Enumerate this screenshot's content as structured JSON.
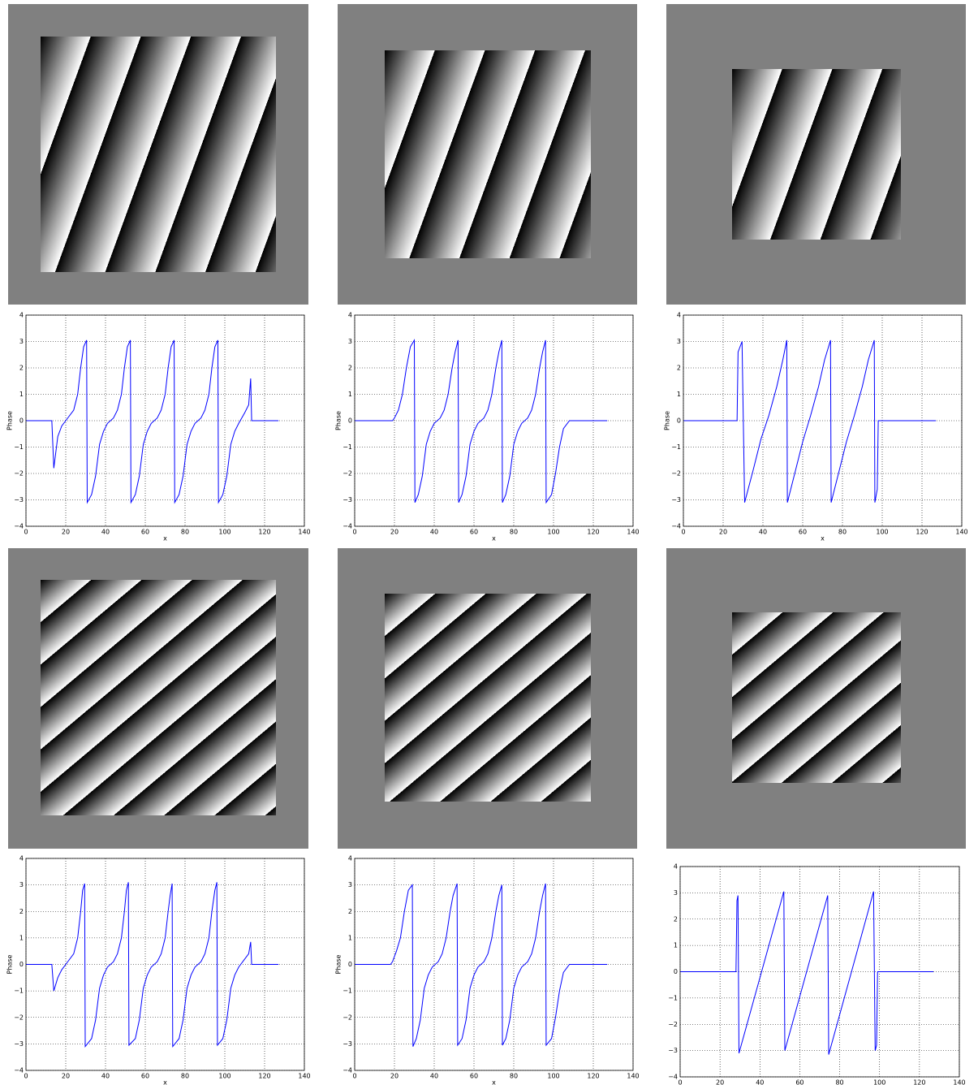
{
  "chart_data": [
    {
      "type": "line",
      "ylabel": "Phase",
      "xlabel": "x",
      "color": "#0000ff",
      "grid": true,
      "xlim": [
        0,
        140
      ],
      "ylim": [
        -4,
        4
      ],
      "xticks": [
        0,
        20,
        40,
        60,
        80,
        100,
        120,
        140
      ],
      "yticks": [
        {
          "value": -4,
          "label": "−4"
        },
        {
          "value": -3,
          "label": "−3"
        },
        {
          "value": -2,
          "label": "−2"
        },
        {
          "value": -1,
          "label": "−1"
        },
        0,
        1,
        2,
        3,
        4
      ],
      "x": [
        0,
        13,
        14,
        16,
        18,
        21,
        24,
        26,
        27.5,
        29,
        30.5,
        30.8,
        33,
        35,
        37,
        39,
        41,
        44,
        46,
        48,
        49.5,
        51,
        52.5,
        52.8,
        55,
        57,
        59,
        61,
        63,
        66,
        68,
        70,
        71.5,
        73,
        74.5,
        74.8,
        77,
        79,
        81,
        83,
        85,
        88,
        90,
        92,
        93.5,
        95,
        96.5,
        96.8,
        99,
        101,
        103,
        105,
        107,
        110,
        112,
        113,
        113.5,
        127
      ],
      "values": [
        0,
        0,
        -1.8,
        -0.6,
        -0.2,
        0.1,
        0.4,
        1,
        2,
        2.8,
        3.05,
        -3.1,
        -2.8,
        -2.1,
        -0.9,
        -0.4,
        -0.1,
        0.1,
        0.4,
        1,
        2,
        2.8,
        3.05,
        -3.1,
        -2.8,
        -2.1,
        -0.9,
        -0.4,
        -0.1,
        0.1,
        0.4,
        1,
        2,
        2.8,
        3.05,
        -3.1,
        -2.8,
        -2.1,
        -0.9,
        -0.4,
        -0.1,
        0.1,
        0.4,
        1,
        2,
        2.8,
        3.05,
        -3.1,
        -2.8,
        -2.1,
        -0.9,
        -0.4,
        -0.1,
        0.3,
        0.6,
        1.6,
        0,
        0
      ]
    },
    {
      "type": "line",
      "ylabel": "Phase",
      "xlabel": "x",
      "color": "#0000ff",
      "grid": true,
      "xlim": [
        0,
        140
      ],
      "ylim": [
        -4,
        4
      ],
      "xticks": [
        0,
        20,
        40,
        60,
        80,
        100,
        120,
        140
      ],
      "yticks": [
        {
          "value": -4,
          "label": "−4"
        },
        {
          "value": -3,
          "label": "−3"
        },
        {
          "value": -2,
          "label": "−2"
        },
        {
          "value": -1,
          "label": "−1"
        },
        0,
        1,
        2,
        3,
        4
      ],
      "x": [
        0,
        19,
        20,
        22,
        24,
        26,
        28,
        30,
        30.3,
        32,
        34,
        36,
        38,
        40,
        43,
        45,
        47,
        49,
        50.5,
        52,
        52.3,
        54,
        56,
        58,
        60,
        62,
        65,
        67,
        69,
        71,
        72.5,
        74,
        74.3,
        76,
        78,
        80,
        82,
        84,
        87,
        89,
        91,
        93,
        94.5,
        96,
        96.3,
        99,
        101,
        103,
        105,
        108,
        127
      ],
      "values": [
        0,
        0,
        0.1,
        0.4,
        1,
        2,
        2.8,
        3.05,
        -3.1,
        -2.8,
        -2.1,
        -0.9,
        -0.4,
        -0.1,
        0.1,
        0.4,
        1,
        2,
        2.6,
        3.05,
        -3.1,
        -2.8,
        -2.1,
        -0.9,
        -0.4,
        -0.1,
        0.1,
        0.4,
        1,
        2,
        2.6,
        3.05,
        -3.1,
        -2.8,
        -2.1,
        -0.9,
        -0.4,
        -0.1,
        0.1,
        0.4,
        1,
        2,
        2.6,
        3.05,
        -3.1,
        -2.8,
        -2,
        -1,
        -0.3,
        0,
        0
      ]
    },
    {
      "type": "line",
      "ylabel": "Phase",
      "xlabel": "x",
      "color": "#0000ff",
      "grid": true,
      "xlim": [
        0,
        140
      ],
      "ylim": [
        -4,
        4
      ],
      "xticks": [
        0,
        20,
        40,
        60,
        80,
        100,
        120,
        140
      ],
      "yticks": [
        {
          "value": -4,
          "label": "−4"
        },
        {
          "value": -3,
          "label": "−3"
        },
        {
          "value": -2,
          "label": "−2"
        },
        {
          "value": -1,
          "label": "−1"
        },
        0,
        1,
        2,
        3,
        4
      ],
      "x": [
        0,
        27,
        27.5,
        29.5,
        30.8,
        35,
        39,
        43,
        47,
        50,
        52,
        52.3,
        56,
        60,
        64,
        68,
        71,
        74,
        74.3,
        78,
        82,
        86,
        90,
        93,
        96,
        96.3,
        97.5,
        98,
        127
      ],
      "values": [
        0,
        0,
        2.6,
        3,
        -3.1,
        -1.9,
        -0.7,
        0.2,
        1.3,
        2.3,
        3.05,
        -3.1,
        -2,
        -0.8,
        0.2,
        1.3,
        2.3,
        3.05,
        -3.1,
        -2,
        -0.8,
        0.2,
        1.3,
        2.3,
        3.05,
        -3.1,
        -2.6,
        0,
        0
      ]
    },
    {
      "type": "line",
      "ylabel": "Phase",
      "xlabel": "x",
      "color": "#0000ff",
      "grid": true,
      "xlim": [
        0,
        140
      ],
      "ylim": [
        -4,
        4
      ],
      "xticks": [
        0,
        20,
        40,
        60,
        80,
        100,
        120,
        140
      ],
      "yticks": [
        {
          "value": -4,
          "label": "−4"
        },
        {
          "value": -3,
          "label": "−3"
        },
        {
          "value": -2,
          "label": "−2"
        },
        {
          "value": -1,
          "label": "−1"
        },
        0,
        1,
        2,
        3,
        4
      ],
      "x": [
        0,
        13,
        14,
        16,
        18,
        21,
        24,
        26,
        27.5,
        28.5,
        29.5,
        29.8,
        33,
        35,
        37,
        39,
        41,
        44,
        46,
        48,
        49.5,
        50.5,
        51.5,
        51.8,
        55,
        57,
        59,
        61,
        63,
        66,
        68,
        70,
        71.5,
        72.5,
        73.5,
        73.8,
        77,
        79,
        81,
        83,
        85,
        88,
        90,
        92,
        93.5,
        95,
        96,
        96.3,
        99,
        101,
        103,
        105,
        107,
        110,
        112,
        113,
        113.5,
        127
      ],
      "values": [
        0,
        0,
        -1,
        -0.5,
        -0.2,
        0.1,
        0.4,
        1,
        2,
        2.8,
        3.05,
        -3.1,
        -2.8,
        -2.1,
        -0.9,
        -0.4,
        -0.1,
        0.1,
        0.4,
        1,
        2,
        2.8,
        3.1,
        -3.05,
        -2.8,
        -2.1,
        -0.9,
        -0.4,
        -0.1,
        0.1,
        0.4,
        1,
        2,
        2.6,
        3.05,
        -3.1,
        -2.8,
        -2.1,
        -0.9,
        -0.4,
        -0.1,
        0.1,
        0.4,
        1,
        2,
        2.8,
        3.1,
        -3.05,
        -2.8,
        -2.1,
        -0.9,
        -0.4,
        -0.1,
        0.2,
        0.4,
        0.85,
        0,
        0
      ]
    },
    {
      "type": "line",
      "ylabel": "Phase",
      "xlabel": "x",
      "color": "#0000ff",
      "grid": true,
      "xlim": [
        0,
        140
      ],
      "ylim": [
        -4,
        4
      ],
      "xticks": [
        0,
        20,
        40,
        60,
        80,
        100,
        120,
        140
      ],
      "yticks": [
        {
          "value": -4,
          "label": "−4"
        },
        {
          "value": -3,
          "label": "−3"
        },
        {
          "value": -2,
          "label": "−2"
        },
        {
          "value": -1,
          "label": "−1"
        },
        0,
        1,
        2,
        3,
        4
      ],
      "x": [
        0,
        18,
        19,
        21,
        23,
        25,
        27,
        29,
        29.3,
        31,
        33,
        35,
        37,
        39,
        42,
        44,
        46,
        48,
        49.5,
        51.5,
        51.8,
        54,
        56,
        58,
        60,
        62,
        65,
        67,
        69,
        71,
        72.5,
        74,
        74.3,
        76,
        78,
        80,
        82,
        84,
        87,
        89,
        91,
        93,
        94.5,
        96,
        96.3,
        99,
        101,
        103,
        105,
        108,
        127
      ],
      "values": [
        0,
        0,
        0.1,
        0.5,
        1,
        2,
        2.8,
        3,
        -3.1,
        -2.8,
        -2.1,
        -0.9,
        -0.4,
        -0.1,
        0.1,
        0.4,
        1,
        2,
        2.6,
        3.05,
        -3.05,
        -2.8,
        -2.1,
        -0.9,
        -0.4,
        -0.1,
        0.1,
        0.4,
        1,
        2,
        2.6,
        3,
        -3.05,
        -2.8,
        -2.1,
        -0.9,
        -0.4,
        -0.1,
        0.1,
        0.4,
        1,
        2,
        2.6,
        3.05,
        -3.05,
        -2.8,
        -2,
        -1,
        -0.3,
        0,
        0
      ]
    },
    {
      "type": "line",
      "color": "#0000ff",
      "grid": true,
      "xlim": [
        0,
        140
      ],
      "ylim": [
        -4,
        4
      ],
      "xticks": [
        0,
        20,
        40,
        60,
        80,
        100,
        120,
        140
      ],
      "yticks": [
        {
          "value": -4,
          "label": "−4"
        },
        {
          "value": -3,
          "label": "−3"
        },
        {
          "value": -2,
          "label": "−2"
        },
        {
          "value": -1,
          "label": "−1"
        },
        0,
        1,
        2,
        3,
        4
      ],
      "x": [
        0,
        28,
        28.5,
        29,
        29.5,
        52,
        52.5,
        74,
        74.5,
        97,
        97.8,
        98.5,
        99,
        127
      ],
      "values": [
        0,
        0,
        2.7,
        2.9,
        -3.1,
        3.05,
        -3,
        2.9,
        -3.15,
        3.05,
        -3,
        -2.8,
        0,
        0
      ]
    }
  ]
}
